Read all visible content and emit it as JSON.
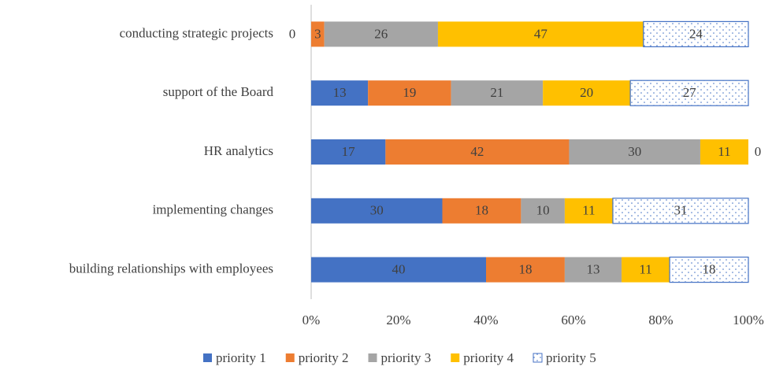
{
  "chart_data": {
    "type": "stacked_bar_horizontal",
    "categories": [
      "conducting strategic projects",
      "support of the Board",
      "HR analytics",
      "implementing changes",
      "building relationships with employees"
    ],
    "series": [
      {
        "name": "priority 1",
        "color": "#4472c4",
        "values": [
          0,
          13,
          17,
          30,
          40
        ]
      },
      {
        "name": "priority 2",
        "color": "#ed7d31",
        "values": [
          3,
          19,
          42,
          18,
          18
        ]
      },
      {
        "name": "priority 3",
        "color": "#a5a5a5",
        "values": [
          26,
          21,
          30,
          10,
          13
        ]
      },
      {
        "name": "priority 4",
        "color": "#ffc000",
        "values": [
          47,
          20,
          11,
          11,
          11
        ]
      },
      {
        "name": "priority 5",
        "color": "#4472c4",
        "pattern": "dotted",
        "values": [
          24,
          27,
          0,
          31,
          18
        ]
      }
    ],
    "xlim": [
      0,
      100
    ],
    "xticks": [
      {
        "value": 0,
        "label": "0%"
      },
      {
        "value": 20,
        "label": "20%"
      },
      {
        "value": 40,
        "label": "40%"
      },
      {
        "value": 60,
        "label": "60%"
      },
      {
        "value": 80,
        "label": "80%"
      },
      {
        "value": 100,
        "label": "100%"
      }
    ],
    "legend": "bottom"
  }
}
